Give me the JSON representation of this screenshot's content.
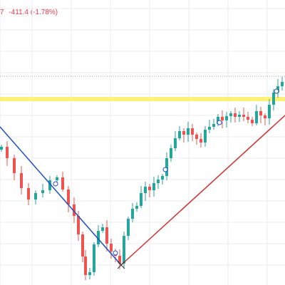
{
  "header": {
    "price_fragment": "7",
    "change_text": "-411.4 (-1.78%)"
  },
  "colors": {
    "up": "#26a69a",
    "down": "#ef5350",
    "level_line": "#fff176",
    "downtrend_line": "#1e50c8",
    "uptrend_line": "#d32f2f",
    "dotted_line": "#9e9e9e",
    "grid": "#eeeeee",
    "background": "#ffffff"
  },
  "drawings": [
    {
      "name": "horizontal-level-line",
      "style": "solid-thick"
    },
    {
      "name": "price-dotted-line",
      "style": "dotted"
    },
    {
      "name": "downtrend-line",
      "style": "solid"
    },
    {
      "name": "uptrend-line",
      "style": "solid"
    }
  ]
}
